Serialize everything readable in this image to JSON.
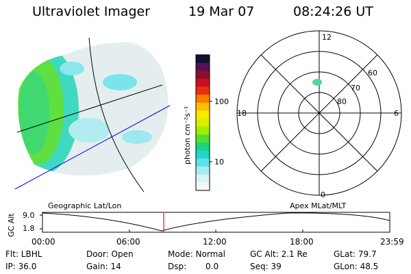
{
  "header": {
    "instrument": "Ultraviolet Imager",
    "date": "19 Mar 07",
    "time": "08:24:26 UT"
  },
  "colorbar": {
    "unit_label": "photon cm⁻²s⁻¹",
    "ticks": [
      "100",
      "10"
    ],
    "colors": [
      "#111133",
      "#551155",
      "#8a1028",
      "#c81020",
      "#e83010",
      "#ff7a00",
      "#ffbf00",
      "#ffe800",
      "#d8f000",
      "#a0ee00",
      "#50e030",
      "#20d080",
      "#20d8c8",
      "#60e0e8",
      "#a8ecf0",
      "#d8f4f4",
      "#f0f8f8"
    ]
  },
  "polar": {
    "lat_labels": [
      "60",
      "70",
      "80"
    ],
    "mlt_labels": [
      "12",
      "18",
      "6",
      "0"
    ]
  },
  "timeline": {
    "left_label": "Geographic Lat/Lon",
    "right_label": "Apex MLat/MLT",
    "axis_label": "GC Alt",
    "y_ticks": [
      "9.0",
      "1.8"
    ],
    "x_ticks": [
      "00:00",
      "06:00",
      "12:00",
      "18:00",
      "23:59"
    ],
    "marker_color": "#ff0000",
    "marker_time": "08:24:26"
  },
  "status": {
    "flt": "Flt: LBHL",
    "ip": "IP: 36.0",
    "door": "Door: Open",
    "gain": "Gain: 14",
    "mode": "Mode: Normal",
    "dsp_label": "Dsp:",
    "dsp_value": "0.0",
    "gc_alt": "GC Alt: 2.1 Re",
    "seq": "Seq: 39",
    "glat": "GLat: 79.7",
    "glon": "GLon: 48.5"
  }
}
